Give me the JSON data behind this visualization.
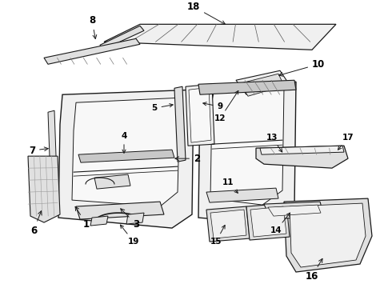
{
  "bg_color": "#ffffff",
  "fig_width": 4.9,
  "fig_height": 3.6,
  "dpi": 100,
  "line_color": "#1a1a1a",
  "fill_light": "#f0f0f0",
  "fill_mid": "#e0e0e0",
  "fill_dark": "#c8c8c8",
  "font_size": 7.5,
  "font_size_large": 8.5
}
